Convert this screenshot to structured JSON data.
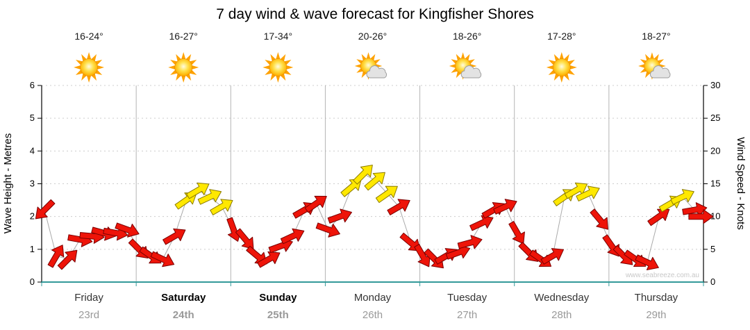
{
  "title": "7 day wind & wave forecast for Kingfisher Shores",
  "watermark": "www.seabreeze.com.au",
  "colors": {
    "arrow_red": "#ee1409",
    "arrow_red_outline": "#7a0000",
    "arrow_yellow": "#ffe800",
    "arrow_yellow_outline": "#8a7a00",
    "wind_line": "#aaaaaa",
    "bottom_axis": "#339999",
    "grid": "#cccccc",
    "day_separator": "#b4b4b4",
    "day_label": "#333333",
    "date_label": "#999999",
    "sun": "#ffb000",
    "cloud": "#e3e3e3"
  },
  "header": {
    "columns": [
      {
        "temp": "16-24°",
        "icon": "sunny"
      },
      {
        "temp": "16-27°",
        "icon": "sunny"
      },
      {
        "temp": "17-34°",
        "icon": "sunny"
      },
      {
        "temp": "20-26°",
        "icon": "partly-cloudy"
      },
      {
        "temp": "18-26°",
        "icon": "partly-cloudy"
      },
      {
        "temp": "17-28°",
        "icon": "sunny"
      },
      {
        "temp": "18-27°",
        "icon": "partly-cloudy"
      }
    ]
  },
  "x_axis": {
    "days": [
      {
        "name": "Friday",
        "date": "23rd",
        "weekend": false
      },
      {
        "name": "Saturday",
        "date": "24th",
        "weekend": true
      },
      {
        "name": "Sunday",
        "date": "25th",
        "weekend": true
      },
      {
        "name": "Monday",
        "date": "26th",
        "weekend": false
      },
      {
        "name": "Tuesday",
        "date": "27th",
        "weekend": false
      },
      {
        "name": "Wednesday",
        "date": "28th",
        "weekend": false
      },
      {
        "name": "Thursday",
        "date": "29th",
        "weekend": false
      }
    ]
  },
  "chart_data": {
    "type": "line",
    "title": "7 day wind & wave forecast for Kingfisher Shores",
    "ylabel_left": "Wave Height - Metres",
    "ylabel_right": "Wind Speed - Knots",
    "ylim_left": [
      0,
      6
    ],
    "ylim_right": [
      0,
      30
    ],
    "left_ticks": [
      0,
      1,
      2,
      3,
      4,
      5,
      6
    ],
    "right_ticks": [
      0,
      5,
      10,
      15,
      20,
      25,
      30
    ],
    "x_range_days": [
      0,
      7
    ],
    "grid": "vertical day separators, faint dotted horizontal gridlines each metre / 5 knots",
    "legend": "arrows show 3-hourly wind: position = speed in knots, rotation = direction; red = lighter wind (< ~12 kt), yellow = stronger (>= ~12 kt); thin grey line connects points",
    "series": [
      {
        "name": "Wind speed",
        "units": "knots",
        "point_format": [
          "t_days",
          "knots",
          "direction_deg",
          "color"
        ],
        "points": [
          [
            0.03,
            11.0,
            135,
            "red"
          ],
          [
            0.155,
            4.0,
            -60,
            "red"
          ],
          [
            0.28,
            3.5,
            -45,
            "red"
          ],
          [
            0.405,
            6.5,
            10,
            "red"
          ],
          [
            0.53,
            7.0,
            5,
            "red"
          ],
          [
            0.655,
            7.5,
            15,
            "red"
          ],
          [
            0.78,
            7.5,
            10,
            "red"
          ],
          [
            0.905,
            8.0,
            20,
            "red"
          ],
          [
            1.03,
            5.0,
            45,
            "red"
          ],
          [
            1.155,
            4.0,
            35,
            "red"
          ],
          [
            1.28,
            3.5,
            25,
            "red"
          ],
          [
            1.405,
            7.0,
            -30,
            "red"
          ],
          [
            1.53,
            12.5,
            -35,
            "yellow"
          ],
          [
            1.655,
            14.0,
            -30,
            "yellow"
          ],
          [
            1.78,
            13.0,
            -25,
            "yellow"
          ],
          [
            1.905,
            11.5,
            -30,
            "yellow"
          ],
          [
            2.03,
            8.0,
            70,
            "red"
          ],
          [
            2.155,
            6.5,
            50,
            "red"
          ],
          [
            2.28,
            4.0,
            40,
            "red"
          ],
          [
            2.405,
            3.5,
            -30,
            "red"
          ],
          [
            2.53,
            5.5,
            -20,
            "red"
          ],
          [
            2.655,
            7.0,
            -25,
            "red"
          ],
          [
            2.78,
            11.0,
            -30,
            "red"
          ],
          [
            2.905,
            12.0,
            -35,
            "red"
          ],
          [
            3.03,
            8.0,
            20,
            "red"
          ],
          [
            3.155,
            10.0,
            -20,
            "red"
          ],
          [
            3.28,
            14.5,
            -40,
            "yellow"
          ],
          [
            3.405,
            16.5,
            -45,
            "yellow"
          ],
          [
            3.53,
            15.5,
            -40,
            "yellow"
          ],
          [
            3.655,
            13.5,
            -35,
            "yellow"
          ],
          [
            3.78,
            11.5,
            -30,
            "red"
          ],
          [
            3.905,
            6.0,
            40,
            "red"
          ],
          [
            4.03,
            4.0,
            60,
            "red"
          ],
          [
            4.155,
            3.5,
            45,
            "red"
          ],
          [
            4.28,
            4.0,
            -30,
            "red"
          ],
          [
            4.405,
            4.5,
            -20,
            "red"
          ],
          [
            4.53,
            6.0,
            -15,
            "red"
          ],
          [
            4.655,
            9.0,
            -25,
            "red"
          ],
          [
            4.78,
            11.0,
            -30,
            "red"
          ],
          [
            4.905,
            11.5,
            -25,
            "red"
          ],
          [
            5.03,
            7.5,
            60,
            "red"
          ],
          [
            5.155,
            4.5,
            45,
            "red"
          ],
          [
            5.28,
            3.5,
            35,
            "red"
          ],
          [
            5.405,
            4.0,
            -30,
            "red"
          ],
          [
            5.53,
            13.0,
            -35,
            "yellow"
          ],
          [
            5.655,
            14.0,
            -30,
            "yellow"
          ],
          [
            5.78,
            13.5,
            -25,
            "yellow"
          ],
          [
            5.905,
            9.5,
            50,
            "red"
          ],
          [
            6.03,
            5.5,
            55,
            "red"
          ],
          [
            6.155,
            4.0,
            45,
            "red"
          ],
          [
            6.28,
            3.5,
            35,
            "red"
          ],
          [
            6.405,
            3.0,
            25,
            "red"
          ],
          [
            6.53,
            10.0,
            -35,
            "red"
          ],
          [
            6.655,
            12.0,
            -30,
            "yellow"
          ],
          [
            6.78,
            13.0,
            -25,
            "yellow"
          ],
          [
            6.905,
            11.0,
            -10,
            "red"
          ],
          [
            6.97,
            10.0,
            0,
            "red"
          ]
        ]
      }
    ]
  }
}
